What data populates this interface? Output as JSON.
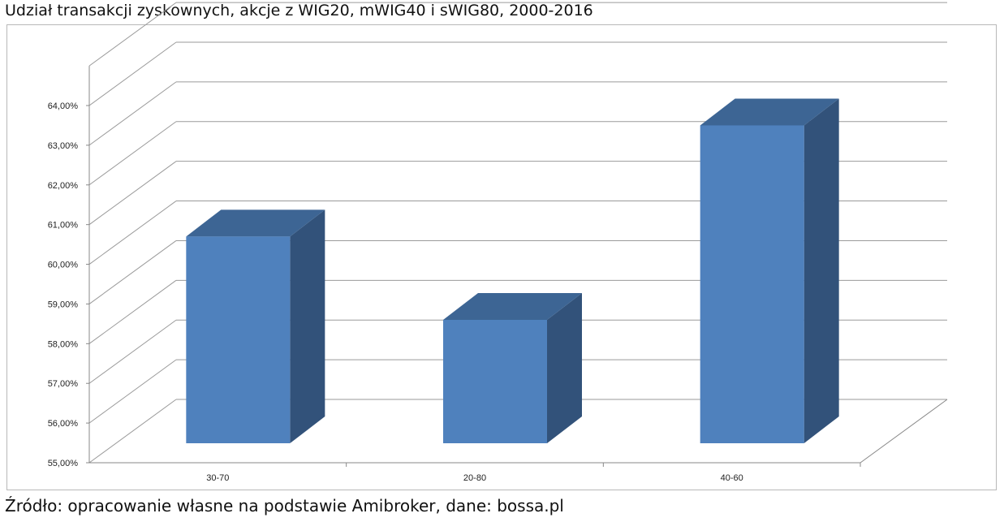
{
  "chart_data": {
    "type": "bar",
    "title": "Udział transakcji zyskownych, akcje z WIG20, mWIG40 i sWIG80, 2000-2016",
    "source": "Źródło: opracowanie własne na podstawie Amibroker, dane: bossa.pl",
    "categories": [
      "30-70",
      "20-80",
      "40-60"
    ],
    "values": [
      60.7,
      58.6,
      63.5
    ],
    "ylim": [
      55,
      64
    ],
    "ytick_values": [
      55,
      56,
      57,
      58,
      59,
      60,
      61,
      62,
      63,
      64
    ],
    "yticks": [
      "55,00%",
      "56,00%",
      "57,00%",
      "58,00%",
      "59,00%",
      "60,00%",
      "61,00%",
      "62,00%",
      "63,00%",
      "64,00%"
    ],
    "grid": true,
    "legend": "none",
    "colors": {
      "front": "#4f81bd",
      "side": "#32527a",
      "top": "#3d6594",
      "grid": "#9a9a9a"
    }
  }
}
